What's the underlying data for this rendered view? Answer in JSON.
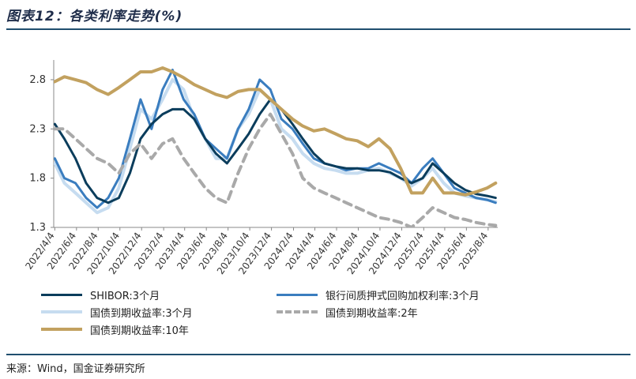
{
  "header": {
    "title": "图表12：各类利率走势(%)"
  },
  "footer": {
    "source": "来源：Wind，国金证券研究所"
  },
  "chart_data": {
    "type": "line",
    "ylim": [
      1.3,
      3.0
    ],
    "yticks": [
      1.3,
      1.8,
      2.3,
      2.8
    ],
    "ytick_labels": [
      "1.3",
      "1.8",
      "2.3",
      "2.8"
    ],
    "xlim": [
      "2022-04-01",
      "2025-08-31"
    ],
    "xtick_labels": [
      "2022/4/4",
      "2022/6/4",
      "2022/8/4",
      "2022/10/4",
      "2022/12/4",
      "2023/2/4",
      "2023/4/4",
      "2023/6/4",
      "2023/8/4",
      "2023/10/4",
      "2023/12/4",
      "2024/2/4",
      "2024/4/4",
      "2024/6/4",
      "2024/8/4",
      "2024/10/4",
      "2024/12/4",
      "2025/2/4",
      "2025/4/4",
      "2025/6/4",
      "2025/8/4"
    ],
    "xtick_dates": [
      "2022-04-04",
      "2022-06-04",
      "2022-08-04",
      "2022-10-04",
      "2022-12-04",
      "2023-02-04",
      "2023-04-04",
      "2023-06-04",
      "2023-08-04",
      "2023-10-04",
      "2023-12-04",
      "2024-02-04",
      "2024-04-04",
      "2024-06-04",
      "2024-08-04",
      "2024-10-04",
      "2024-12-04",
      "2025-02-04",
      "2025-04-04",
      "2025-06-04",
      "2025-08-04"
    ],
    "series": [
      {
        "name": "SHIBOR:3个月",
        "color": "#0b3d5c",
        "style": "solid",
        "width": 3,
        "x": [
          "2022-04-04",
          "2022-05-01",
          "2022-06-01",
          "2022-07-01",
          "2022-08-01",
          "2022-09-01",
          "2022-10-01",
          "2022-11-01",
          "2022-12-01",
          "2023-01-01",
          "2023-02-01",
          "2023-03-01",
          "2023-04-01",
          "2023-05-01",
          "2023-06-01",
          "2023-07-01",
          "2023-08-01",
          "2023-09-01",
          "2023-10-01",
          "2023-11-01",
          "2023-12-01",
          "2024-01-01",
          "2024-02-01",
          "2024-03-01",
          "2024-04-01",
          "2024-05-01",
          "2024-06-01",
          "2024-07-01",
          "2024-08-01",
          "2024-09-01",
          "2024-10-01",
          "2024-11-01",
          "2024-12-01",
          "2025-01-01",
          "2025-02-01",
          "2025-03-01",
          "2025-04-01",
          "2025-05-01",
          "2025-06-01",
          "2025-07-01",
          "2025-08-01",
          "2025-08-25"
        ],
        "y": [
          2.35,
          2.2,
          2.0,
          1.75,
          1.6,
          1.55,
          1.6,
          1.85,
          2.2,
          2.35,
          2.45,
          2.5,
          2.5,
          2.4,
          2.2,
          2.05,
          1.95,
          2.1,
          2.25,
          2.45,
          2.6,
          2.5,
          2.35,
          2.2,
          2.05,
          1.95,
          1.92,
          1.9,
          1.9,
          1.88,
          1.88,
          1.86,
          1.8,
          1.75,
          1.8,
          1.95,
          1.85,
          1.75,
          1.68,
          1.64,
          1.62,
          1.6
        ]
      },
      {
        "name": "银行间质押式回购加权利率:3个月",
        "color": "#3a7dbf",
        "style": "solid",
        "width": 3,
        "x": [
          "2022-04-04",
          "2022-05-01",
          "2022-06-01",
          "2022-07-01",
          "2022-08-01",
          "2022-09-01",
          "2022-10-01",
          "2022-11-01",
          "2022-12-01",
          "2023-01-01",
          "2023-02-01",
          "2023-03-01",
          "2023-04-01",
          "2023-05-01",
          "2023-06-01",
          "2023-07-01",
          "2023-08-01",
          "2023-09-01",
          "2023-10-01",
          "2023-11-01",
          "2023-12-01",
          "2024-01-01",
          "2024-02-01",
          "2024-03-01",
          "2024-04-01",
          "2024-05-01",
          "2024-06-01",
          "2024-07-01",
          "2024-08-01",
          "2024-09-01",
          "2024-10-01",
          "2024-11-01",
          "2024-12-01",
          "2025-01-01",
          "2025-02-01",
          "2025-03-01",
          "2025-04-01",
          "2025-05-01",
          "2025-06-01",
          "2025-07-01",
          "2025-08-01",
          "2025-08-25"
        ],
        "y": [
          2.0,
          1.8,
          1.75,
          1.6,
          1.5,
          1.6,
          1.8,
          2.2,
          2.6,
          2.3,
          2.7,
          2.9,
          2.6,
          2.45,
          2.2,
          2.1,
          2.0,
          2.3,
          2.5,
          2.8,
          2.7,
          2.4,
          2.3,
          2.15,
          2.0,
          1.95,
          1.92,
          1.88,
          1.9,
          1.9,
          1.95,
          1.9,
          1.85,
          1.75,
          1.9,
          2.0,
          1.85,
          1.7,
          1.65,
          1.6,
          1.58,
          1.55
        ]
      },
      {
        "name": "国债到期收益率:3个月",
        "color": "#c6dcf0",
        "style": "solid",
        "width": 4,
        "x": [
          "2022-04-04",
          "2022-05-01",
          "2022-06-01",
          "2022-07-01",
          "2022-08-01",
          "2022-09-01",
          "2022-10-01",
          "2022-11-01",
          "2022-12-01",
          "2023-01-01",
          "2023-02-01",
          "2023-03-01",
          "2023-04-01",
          "2023-05-01",
          "2023-06-01",
          "2023-07-01",
          "2023-08-01",
          "2023-09-01",
          "2023-10-01",
          "2023-11-01",
          "2023-12-01",
          "2024-01-01",
          "2024-02-01",
          "2024-03-01",
          "2024-04-01",
          "2024-05-01",
          "2024-06-01",
          "2024-07-01",
          "2024-08-01",
          "2024-09-01",
          "2024-10-01",
          "2024-11-01",
          "2024-12-01",
          "2025-01-01",
          "2025-02-01",
          "2025-03-01",
          "2025-04-01",
          "2025-05-01",
          "2025-06-01",
          "2025-07-01",
          "2025-08-01",
          "2025-08-25"
        ],
        "y": [
          1.95,
          1.75,
          1.65,
          1.55,
          1.45,
          1.5,
          1.7,
          2.1,
          2.5,
          2.4,
          2.6,
          2.8,
          2.7,
          2.4,
          2.2,
          2.0,
          2.0,
          2.3,
          2.45,
          2.7,
          2.6,
          2.3,
          2.2,
          2.05,
          1.95,
          1.9,
          1.88,
          1.85,
          1.85,
          1.88,
          1.9,
          1.85,
          1.8,
          1.72,
          1.8,
          1.9,
          1.75,
          1.65,
          1.62,
          1.6,
          1.58,
          1.56
        ]
      },
      {
        "name": "国债到期收益率:2年",
        "color": "#a9a9a9",
        "style": "dashed",
        "width": 4,
        "x": [
          "2022-04-04",
          "2022-05-01",
          "2022-06-01",
          "2022-07-01",
          "2022-08-01",
          "2022-09-01",
          "2022-10-01",
          "2022-11-01",
          "2022-12-01",
          "2023-01-01",
          "2023-02-01",
          "2023-03-01",
          "2023-04-01",
          "2023-05-01",
          "2023-06-01",
          "2023-07-01",
          "2023-08-01",
          "2023-09-01",
          "2023-10-01",
          "2023-11-01",
          "2023-12-01",
          "2024-01-01",
          "2024-02-01",
          "2024-03-01",
          "2024-04-01",
          "2024-05-01",
          "2024-06-01",
          "2024-07-01",
          "2024-08-01",
          "2024-09-01",
          "2024-10-01",
          "2024-11-01",
          "2024-12-01",
          "2025-01-01",
          "2025-02-01",
          "2025-03-01",
          "2025-04-01",
          "2025-05-01",
          "2025-06-01",
          "2025-07-01",
          "2025-08-01",
          "2025-08-25"
        ],
        "y": [
          2.3,
          2.3,
          2.2,
          2.1,
          2.0,
          1.95,
          1.85,
          2.05,
          2.15,
          2.0,
          2.15,
          2.2,
          2.0,
          1.85,
          1.7,
          1.6,
          1.55,
          1.85,
          2.1,
          2.3,
          2.45,
          2.25,
          2.05,
          1.8,
          1.7,
          1.65,
          1.6,
          1.55,
          1.5,
          1.45,
          1.4,
          1.38,
          1.35,
          1.3,
          1.4,
          1.5,
          1.45,
          1.4,
          1.38,
          1.35,
          1.33,
          1.32
        ]
      },
      {
        "name": "国债到期收益率:10年",
        "color": "#c2a15f",
        "style": "solid",
        "width": 4,
        "x": [
          "2022-04-04",
          "2022-05-01",
          "2022-06-01",
          "2022-07-01",
          "2022-08-01",
          "2022-09-01",
          "2022-10-01",
          "2022-11-01",
          "2022-12-01",
          "2023-01-01",
          "2023-02-01",
          "2023-03-01",
          "2023-04-01",
          "2023-05-01",
          "2023-06-01",
          "2023-07-01",
          "2023-08-01",
          "2023-09-01",
          "2023-10-01",
          "2023-11-01",
          "2023-12-01",
          "2024-01-01",
          "2024-02-01",
          "2024-03-01",
          "2024-04-01",
          "2024-05-01",
          "2024-06-01",
          "2024-07-01",
          "2024-08-01",
          "2024-09-01",
          "2024-10-01",
          "2024-11-01",
          "2024-12-01",
          "2025-01-01",
          "2025-02-01",
          "2025-03-01",
          "2025-04-01",
          "2025-05-01",
          "2025-06-01",
          "2025-07-01",
          "2025-08-01",
          "2025-08-25"
        ],
        "y": [
          2.78,
          2.83,
          2.8,
          2.77,
          2.7,
          2.65,
          2.72,
          2.8,
          2.88,
          2.88,
          2.92,
          2.88,
          2.82,
          2.75,
          2.7,
          2.65,
          2.62,
          2.68,
          2.7,
          2.7,
          2.6,
          2.5,
          2.4,
          2.33,
          2.28,
          2.3,
          2.25,
          2.2,
          2.18,
          2.12,
          2.2,
          2.1,
          1.9,
          1.65,
          1.65,
          1.8,
          1.65,
          1.65,
          1.63,
          1.66,
          1.7,
          1.75
        ]
      }
    ],
    "legend_placement": "bottom",
    "grid": false
  }
}
